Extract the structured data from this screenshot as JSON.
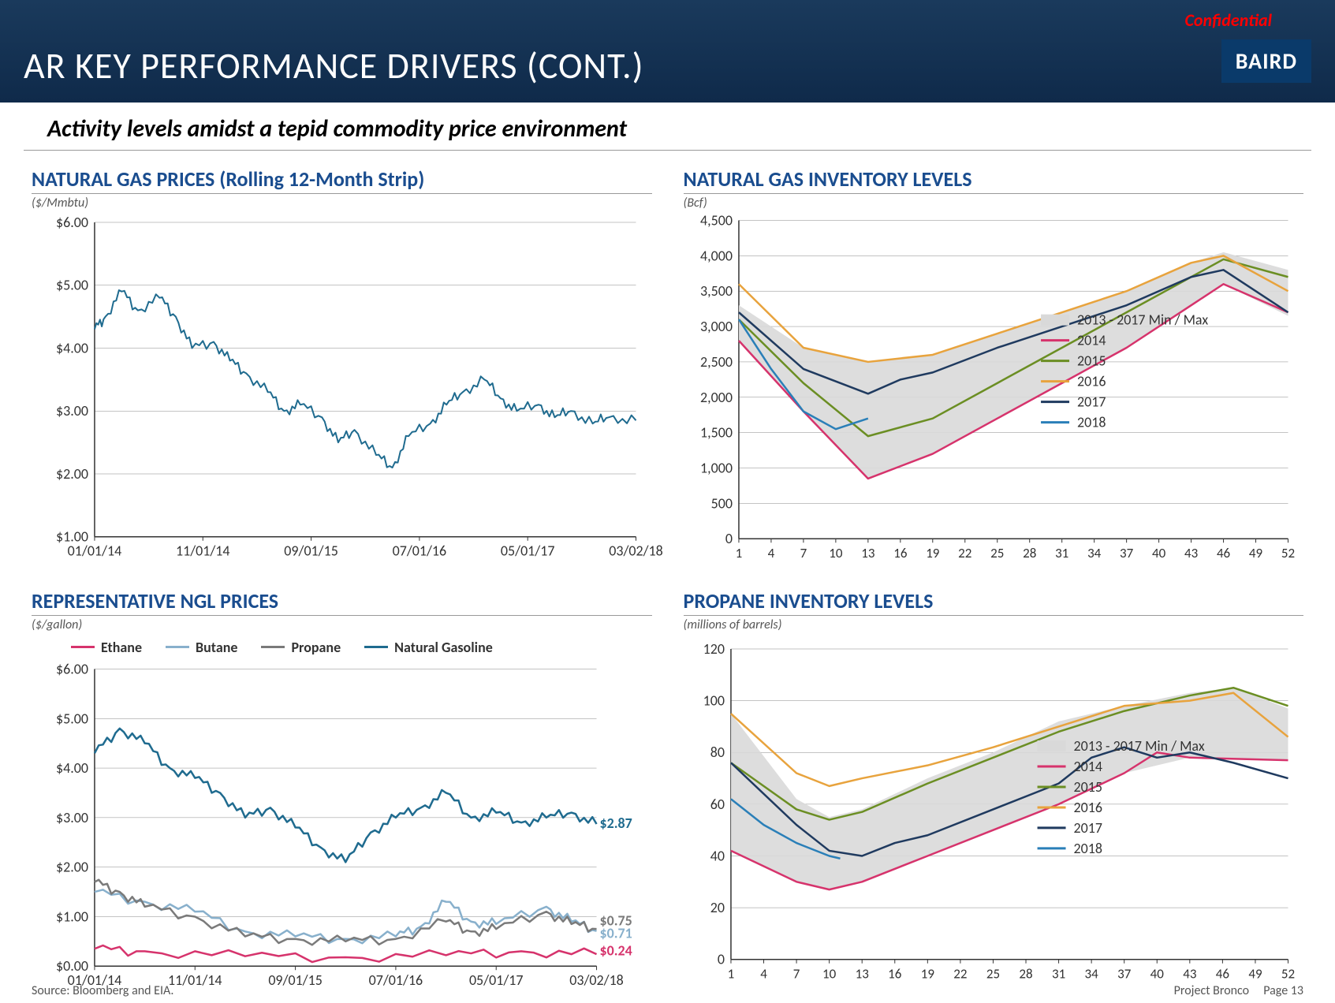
{
  "header": {
    "title": "AR KEY PERFORMANCE DRIVERS (CONT.)",
    "confidential": "Confidential",
    "logo": "BAIRD",
    "bg_gradient": [
      "#1a3a5c",
      "#0f2a4a"
    ],
    "title_color": "#ffffff",
    "confidential_color": "#ff0000"
  },
  "subtitle": "Activity levels amidst a tepid commodity price environment",
  "charts": {
    "nat_gas_prices": {
      "title": "NATURAL GAS PRICES (Rolling 12-Month Strip)",
      "subtitle": "($/Mmbtu)",
      "type": "line",
      "x_labels": [
        "01/01/14",
        "11/01/14",
        "09/01/15",
        "07/01/16",
        "05/01/17",
        "03/02/18"
      ],
      "y_ticks": [
        1,
        2,
        3,
        4,
        5,
        6
      ],
      "y_format": "$%.2f",
      "ylim": [
        1,
        6
      ],
      "series": [
        {
          "name": "Natural Gas",
          "color": "#1f6b8f",
          "width": 2,
          "noisy": true,
          "points": [
            [
              0,
              4.3
            ],
            [
              0.02,
              4.5
            ],
            [
              0.05,
              4.9
            ],
            [
              0.08,
              4.6
            ],
            [
              0.12,
              4.8
            ],
            [
              0.15,
              4.5
            ],
            [
              0.18,
              4.0
            ],
            [
              0.22,
              4.1
            ],
            [
              0.25,
              3.8
            ],
            [
              0.28,
              3.6
            ],
            [
              0.32,
              3.3
            ],
            [
              0.35,
              3.0
            ],
            [
              0.38,
              3.1
            ],
            [
              0.42,
              2.9
            ],
            [
              0.45,
              2.5
            ],
            [
              0.48,
              2.7
            ],
            [
              0.52,
              2.3
            ],
            [
              0.55,
              2.1
            ],
            [
              0.58,
              2.6
            ],
            [
              0.62,
              2.8
            ],
            [
              0.65,
              3.1
            ],
            [
              0.68,
              3.3
            ],
            [
              0.72,
              3.5
            ],
            [
              0.75,
              3.2
            ],
            [
              0.78,
              3.0
            ],
            [
              0.82,
              3.1
            ],
            [
              0.85,
              2.9
            ],
            [
              0.88,
              3.0
            ],
            [
              0.92,
              2.8
            ],
            [
              0.95,
              2.9
            ],
            [
              1.0,
              2.85
            ]
          ]
        }
      ]
    },
    "nat_gas_inventory": {
      "title": "NATURAL GAS INVENTORY LEVELS",
      "subtitle": "(Bcf)",
      "type": "line",
      "x_ticks": [
        1,
        4,
        7,
        10,
        13,
        16,
        19,
        22,
        25,
        28,
        31,
        34,
        37,
        40,
        43,
        46,
        49,
        52
      ],
      "xlim": [
        1,
        52
      ],
      "y_ticks": [
        0,
        500,
        1000,
        1500,
        2000,
        2500,
        3000,
        3500,
        4000,
        4500
      ],
      "ylim": [
        0,
        4500
      ],
      "band_fill": "#d9d9d9",
      "band_label": "2013 - 2017 Min / Max",
      "band_upper": [
        [
          1,
          3300
        ],
        [
          7,
          2700
        ],
        [
          13,
          2500
        ],
        [
          19,
          2600
        ],
        [
          25,
          2900
        ],
        [
          31,
          3200
        ],
        [
          37,
          3500
        ],
        [
          43,
          3900
        ],
        [
          46,
          4050
        ],
        [
          52,
          3800
        ]
      ],
      "band_lower": [
        [
          1,
          2800
        ],
        [
          7,
          1800
        ],
        [
          13,
          850
        ],
        [
          19,
          1200
        ],
        [
          25,
          1700
        ],
        [
          31,
          2200
        ],
        [
          37,
          2700
        ],
        [
          43,
          3300
        ],
        [
          46,
          3600
        ],
        [
          52,
          3150
        ]
      ],
      "series": [
        {
          "name": "2014",
          "color": "#d6336c",
          "points": [
            [
              1,
              2800
            ],
            [
              7,
              1800
            ],
            [
              13,
              850
            ],
            [
              19,
              1200
            ],
            [
              25,
              1700
            ],
            [
              31,
              2200
            ],
            [
              37,
              2700
            ],
            [
              43,
              3300
            ],
            [
              46,
              3600
            ],
            [
              52,
              3200
            ]
          ]
        },
        {
          "name": "2015",
          "color": "#6b8e23",
          "points": [
            [
              1,
              3100
            ],
            [
              7,
              2200
            ],
            [
              13,
              1450
            ],
            [
              19,
              1700
            ],
            [
              25,
              2200
            ],
            [
              31,
              2700
            ],
            [
              37,
              3200
            ],
            [
              43,
              3700
            ],
            [
              46,
              3950
            ],
            [
              52,
              3700
            ]
          ]
        },
        {
          "name": "2016",
          "color": "#e8a33d",
          "points": [
            [
              1,
              3600
            ],
            [
              7,
              2700
            ],
            [
              13,
              2500
            ],
            [
              19,
              2600
            ],
            [
              25,
              2900
            ],
            [
              31,
              3200
            ],
            [
              37,
              3500
            ],
            [
              43,
              3900
            ],
            [
              46,
              4000
            ],
            [
              52,
              3500
            ]
          ]
        },
        {
          "name": "2017",
          "color": "#1f3a5f",
          "points": [
            [
              1,
              3200
            ],
            [
              7,
              2400
            ],
            [
              13,
              2050
            ],
            [
              16,
              2250
            ],
            [
              19,
              2350
            ],
            [
              25,
              2700
            ],
            [
              31,
              3000
            ],
            [
              37,
              3300
            ],
            [
              43,
              3700
            ],
            [
              46,
              3800
            ],
            [
              52,
              3200
            ]
          ]
        },
        {
          "name": "2018",
          "color": "#2a7fb8",
          "points": [
            [
              1,
              3100
            ],
            [
              4,
              2400
            ],
            [
              7,
              1800
            ],
            [
              10,
              1550
            ],
            [
              13,
              1700
            ]
          ]
        }
      ]
    },
    "ngl_prices": {
      "title": "REPRESENTATIVE NGL PRICES",
      "subtitle": "($/gallon)",
      "type": "line",
      "x_labels": [
        "01/01/14",
        "11/01/14",
        "09/01/15",
        "07/01/16",
        "05/01/17",
        "03/02/18"
      ],
      "y_ticks": [
        0,
        1,
        2,
        3,
        4,
        5,
        6
      ],
      "y_format": "$%.2f",
      "ylim": [
        0,
        6
      ],
      "legend": [
        {
          "name": "Ethane",
          "color": "#d6336c"
        },
        {
          "name": "Butane",
          "color": "#88b0cc"
        },
        {
          "name": "Propane",
          "color": "#7a7a7a"
        },
        {
          "name": "Natural Gasoline",
          "color": "#1f6b8f"
        }
      ],
      "end_labels": [
        {
          "text": "$2.87",
          "color": "#1f6b8f",
          "y": 2.87
        },
        {
          "text": "$0.75",
          "color": "#7a7a7a",
          "y": 0.9
        },
        {
          "text": "$0.71",
          "color": "#88b0cc",
          "y": 0.65
        },
        {
          "text": "$0.24",
          "color": "#d6336c",
          "y": 0.3
        }
      ],
      "series": [
        {
          "name": "Natural Gasoline",
          "color": "#1f6b8f",
          "noisy": true,
          "points": [
            [
              0,
              4.3
            ],
            [
              0.05,
              4.8
            ],
            [
              0.1,
              4.5
            ],
            [
              0.15,
              4.0
            ],
            [
              0.2,
              3.8
            ],
            [
              0.25,
              3.5
            ],
            [
              0.3,
              3.0
            ],
            [
              0.35,
              3.2
            ],
            [
              0.4,
              2.8
            ],
            [
              0.45,
              2.4
            ],
            [
              0.5,
              2.1
            ],
            [
              0.55,
              2.7
            ],
            [
              0.6,
              3.0
            ],
            [
              0.65,
              3.2
            ],
            [
              0.7,
              3.5
            ],
            [
              0.75,
              3.0
            ],
            [
              0.8,
              3.1
            ],
            [
              0.85,
              2.9
            ],
            [
              0.9,
              3.0
            ],
            [
              0.95,
              3.1
            ],
            [
              1.0,
              2.87
            ]
          ]
        },
        {
          "name": "Butane",
          "color": "#88b0cc",
          "noisy": true,
          "points": [
            [
              0,
              1.5
            ],
            [
              0.1,
              1.3
            ],
            [
              0.2,
              1.1
            ],
            [
              0.3,
              0.7
            ],
            [
              0.4,
              0.6
            ],
            [
              0.5,
              0.55
            ],
            [
              0.6,
              0.6
            ],
            [
              0.65,
              0.8
            ],
            [
              0.7,
              1.3
            ],
            [
              0.75,
              0.9
            ],
            [
              0.8,
              0.85
            ],
            [
              0.9,
              1.2
            ],
            [
              0.95,
              0.9
            ],
            [
              1.0,
              0.71
            ]
          ]
        },
        {
          "name": "Propane",
          "color": "#7a7a7a",
          "noisy": true,
          "points": [
            [
              0,
              1.7
            ],
            [
              0.05,
              1.5
            ],
            [
              0.1,
              1.2
            ],
            [
              0.2,
              1.0
            ],
            [
              0.3,
              0.6
            ],
            [
              0.4,
              0.55
            ],
            [
              0.5,
              0.5
            ],
            [
              0.6,
              0.55
            ],
            [
              0.7,
              0.9
            ],
            [
              0.75,
              0.7
            ],
            [
              0.8,
              0.75
            ],
            [
              0.9,
              1.1
            ],
            [
              0.95,
              0.85
            ],
            [
              1.0,
              0.75
            ]
          ]
        },
        {
          "name": "Ethane",
          "color": "#d6336c",
          "noisy": true,
          "points": [
            [
              0,
              0.35
            ],
            [
              0.1,
              0.3
            ],
            [
              0.3,
              0.2
            ],
            [
              0.5,
              0.18
            ],
            [
              0.7,
              0.22
            ],
            [
              0.85,
              0.3
            ],
            [
              1.0,
              0.24
            ]
          ]
        }
      ]
    },
    "propane_inventory": {
      "title": "PROPANE INVENTORY LEVELS",
      "subtitle": "(millions of barrels)",
      "type": "line",
      "x_ticks": [
        1,
        4,
        7,
        10,
        13,
        16,
        19,
        22,
        25,
        28,
        31,
        34,
        37,
        40,
        43,
        46,
        49,
        52
      ],
      "xlim": [
        1,
        52
      ],
      "y_ticks": [
        0,
        20,
        40,
        60,
        80,
        100,
        120
      ],
      "ylim": [
        0,
        120
      ],
      "band_fill": "#d9d9d9",
      "band_label": "2013 - 2017 Min / Max",
      "band_upper": [
        [
          1,
          95
        ],
        [
          7,
          62
        ],
        [
          10,
          55
        ],
        [
          13,
          58
        ],
        [
          19,
          70
        ],
        [
          25,
          80
        ],
        [
          31,
          92
        ],
        [
          37,
          98
        ],
        [
          43,
          103
        ],
        [
          47,
          105
        ],
        [
          52,
          97
        ]
      ],
      "band_lower": [
        [
          1,
          42
        ],
        [
          7,
          30
        ],
        [
          10,
          27
        ],
        [
          13,
          30
        ],
        [
          19,
          40
        ],
        [
          25,
          50
        ],
        [
          31,
          60
        ],
        [
          37,
          72
        ],
        [
          43,
          78
        ],
        [
          52,
          77
        ]
      ],
      "series": [
        {
          "name": "2014",
          "color": "#d6336c",
          "points": [
            [
              1,
              42
            ],
            [
              7,
              30
            ],
            [
              10,
              27
            ],
            [
              13,
              30
            ],
            [
              19,
              40
            ],
            [
              25,
              50
            ],
            [
              31,
              60
            ],
            [
              37,
              72
            ],
            [
              40,
              80
            ],
            [
              43,
              78
            ],
            [
              52,
              77
            ]
          ]
        },
        {
          "name": "2015",
          "color": "#6b8e23",
          "points": [
            [
              1,
              76
            ],
            [
              7,
              58
            ],
            [
              10,
              54
            ],
            [
              13,
              57
            ],
            [
              19,
              68
            ],
            [
              25,
              78
            ],
            [
              31,
              88
            ],
            [
              37,
              96
            ],
            [
              43,
              102
            ],
            [
              47,
              105
            ],
            [
              52,
              98
            ]
          ]
        },
        {
          "name": "2016",
          "color": "#e8a33d",
          "points": [
            [
              1,
              95
            ],
            [
              7,
              72
            ],
            [
              10,
              67
            ],
            [
              13,
              70
            ],
            [
              19,
              75
            ],
            [
              25,
              82
            ],
            [
              31,
              90
            ],
            [
              37,
              98
            ],
            [
              43,
              100
            ],
            [
              47,
              103
            ],
            [
              52,
              86
            ]
          ]
        },
        {
          "name": "2017",
          "color": "#1f3a5f",
          "points": [
            [
              1,
              76
            ],
            [
              7,
              52
            ],
            [
              10,
              42
            ],
            [
              13,
              40
            ],
            [
              16,
              45
            ],
            [
              19,
              48
            ],
            [
              25,
              58
            ],
            [
              31,
              68
            ],
            [
              34,
              78
            ],
            [
              37,
              82
            ],
            [
              40,
              78
            ],
            [
              43,
              80
            ],
            [
              47,
              76
            ],
            [
              52,
              70
            ]
          ]
        },
        {
          "name": "2018",
          "color": "#2a7fb8",
          "points": [
            [
              1,
              62
            ],
            [
              4,
              52
            ],
            [
              7,
              45
            ],
            [
              10,
              40
            ],
            [
              11,
              39
            ]
          ]
        }
      ]
    }
  },
  "footer": {
    "source": "Source: Bloomberg and EIA.",
    "project": "Project Bronco",
    "page": "Page 13"
  },
  "style": {
    "title_color": "#1a4d8f",
    "grid_color": "#888888",
    "bg": "#ffffff"
  }
}
